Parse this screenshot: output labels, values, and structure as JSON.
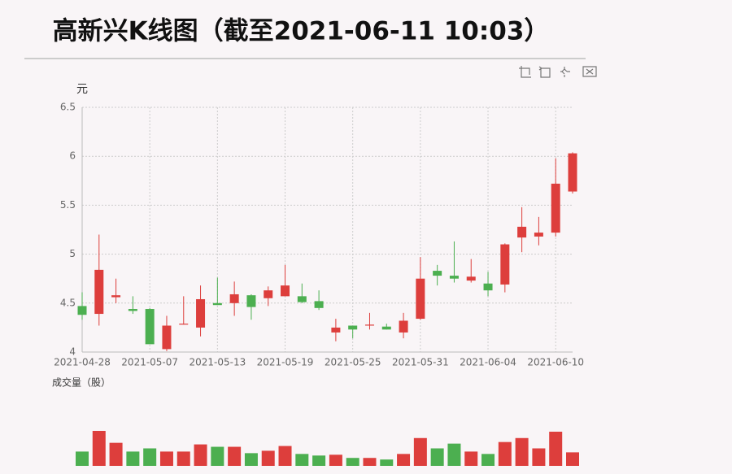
{
  "chart_data": {
    "type": "candlestick",
    "title": "高新兴K线图（截至2021-06-11 10:03）",
    "y_label": "元",
    "volume_label": "成交量（股）",
    "categories": [
      "2021-04-28",
      null,
      null,
      null,
      "2021-05-07",
      null,
      null,
      null,
      "2021-05-13",
      null,
      null,
      null,
      "2021-05-19",
      null,
      null,
      null,
      "2021-05-25",
      null,
      null,
      null,
      "2021-05-31",
      null,
      null,
      null,
      "2021-06-04",
      null,
      null,
      null,
      "2021-06-10",
      null
    ],
    "open": [
      4.47,
      4.39,
      4.56,
      4.44,
      4.44,
      4.03,
      4.28,
      4.25,
      4.5,
      4.5,
      4.58,
      4.55,
      4.57,
      4.57,
      4.52,
      4.2,
      4.27,
      4.27,
      4.26,
      4.2,
      4.34,
      4.83,
      4.78,
      4.73,
      4.7,
      4.69,
      5.17,
      5.18,
      5.22,
      5.64
    ],
    "close": [
      4.38,
      4.84,
      4.58,
      4.42,
      4.08,
      4.27,
      4.29,
      4.54,
      4.48,
      4.59,
      4.46,
      4.63,
      4.68,
      4.51,
      4.45,
      4.25,
      4.23,
      4.28,
      4.23,
      4.32,
      4.75,
      4.78,
      4.75,
      4.77,
      4.63,
      5.1,
      5.28,
      5.22,
      5.72,
      6.03
    ],
    "high": [
      4.61,
      5.2,
      4.75,
      4.57,
      4.45,
      4.37,
      4.57,
      4.68,
      4.76,
      4.72,
      4.59,
      4.67,
      4.89,
      4.7,
      4.63,
      4.34,
      4.27,
      4.4,
      4.29,
      4.4,
      4.97,
      4.89,
      5.13,
      4.95,
      4.82,
      5.11,
      5.48,
      5.38,
      5.98,
      6.04
    ],
    "low": [
      4.33,
      4.27,
      4.5,
      4.39,
      4.08,
      4.01,
      4.28,
      4.16,
      4.48,
      4.37,
      4.33,
      4.47,
      4.57,
      4.5,
      4.43,
      4.11,
      4.14,
      4.23,
      4.23,
      4.14,
      4.33,
      4.68,
      4.71,
      4.71,
      4.57,
      4.61,
      5.02,
      5.09,
      5.18,
      5.62
    ],
    "volume": [
      18,
      44,
      29,
      18,
      22,
      18,
      18,
      27,
      24,
      24,
      16,
      19,
      25,
      15,
      13,
      14,
      10,
      10,
      8,
      15,
      35,
      22,
      28,
      18,
      15,
      30,
      35,
      22,
      43,
      17
    ],
    "volume_ylim": [
      0,
      45
    ],
    "up_color": "#dd3e3c",
    "down_color": "#4caf50",
    "ylim": [
      4,
      6.5
    ],
    "yticks": [
      4,
      4.5,
      5,
      5.5,
      6,
      6.5
    ],
    "grid": true
  }
}
